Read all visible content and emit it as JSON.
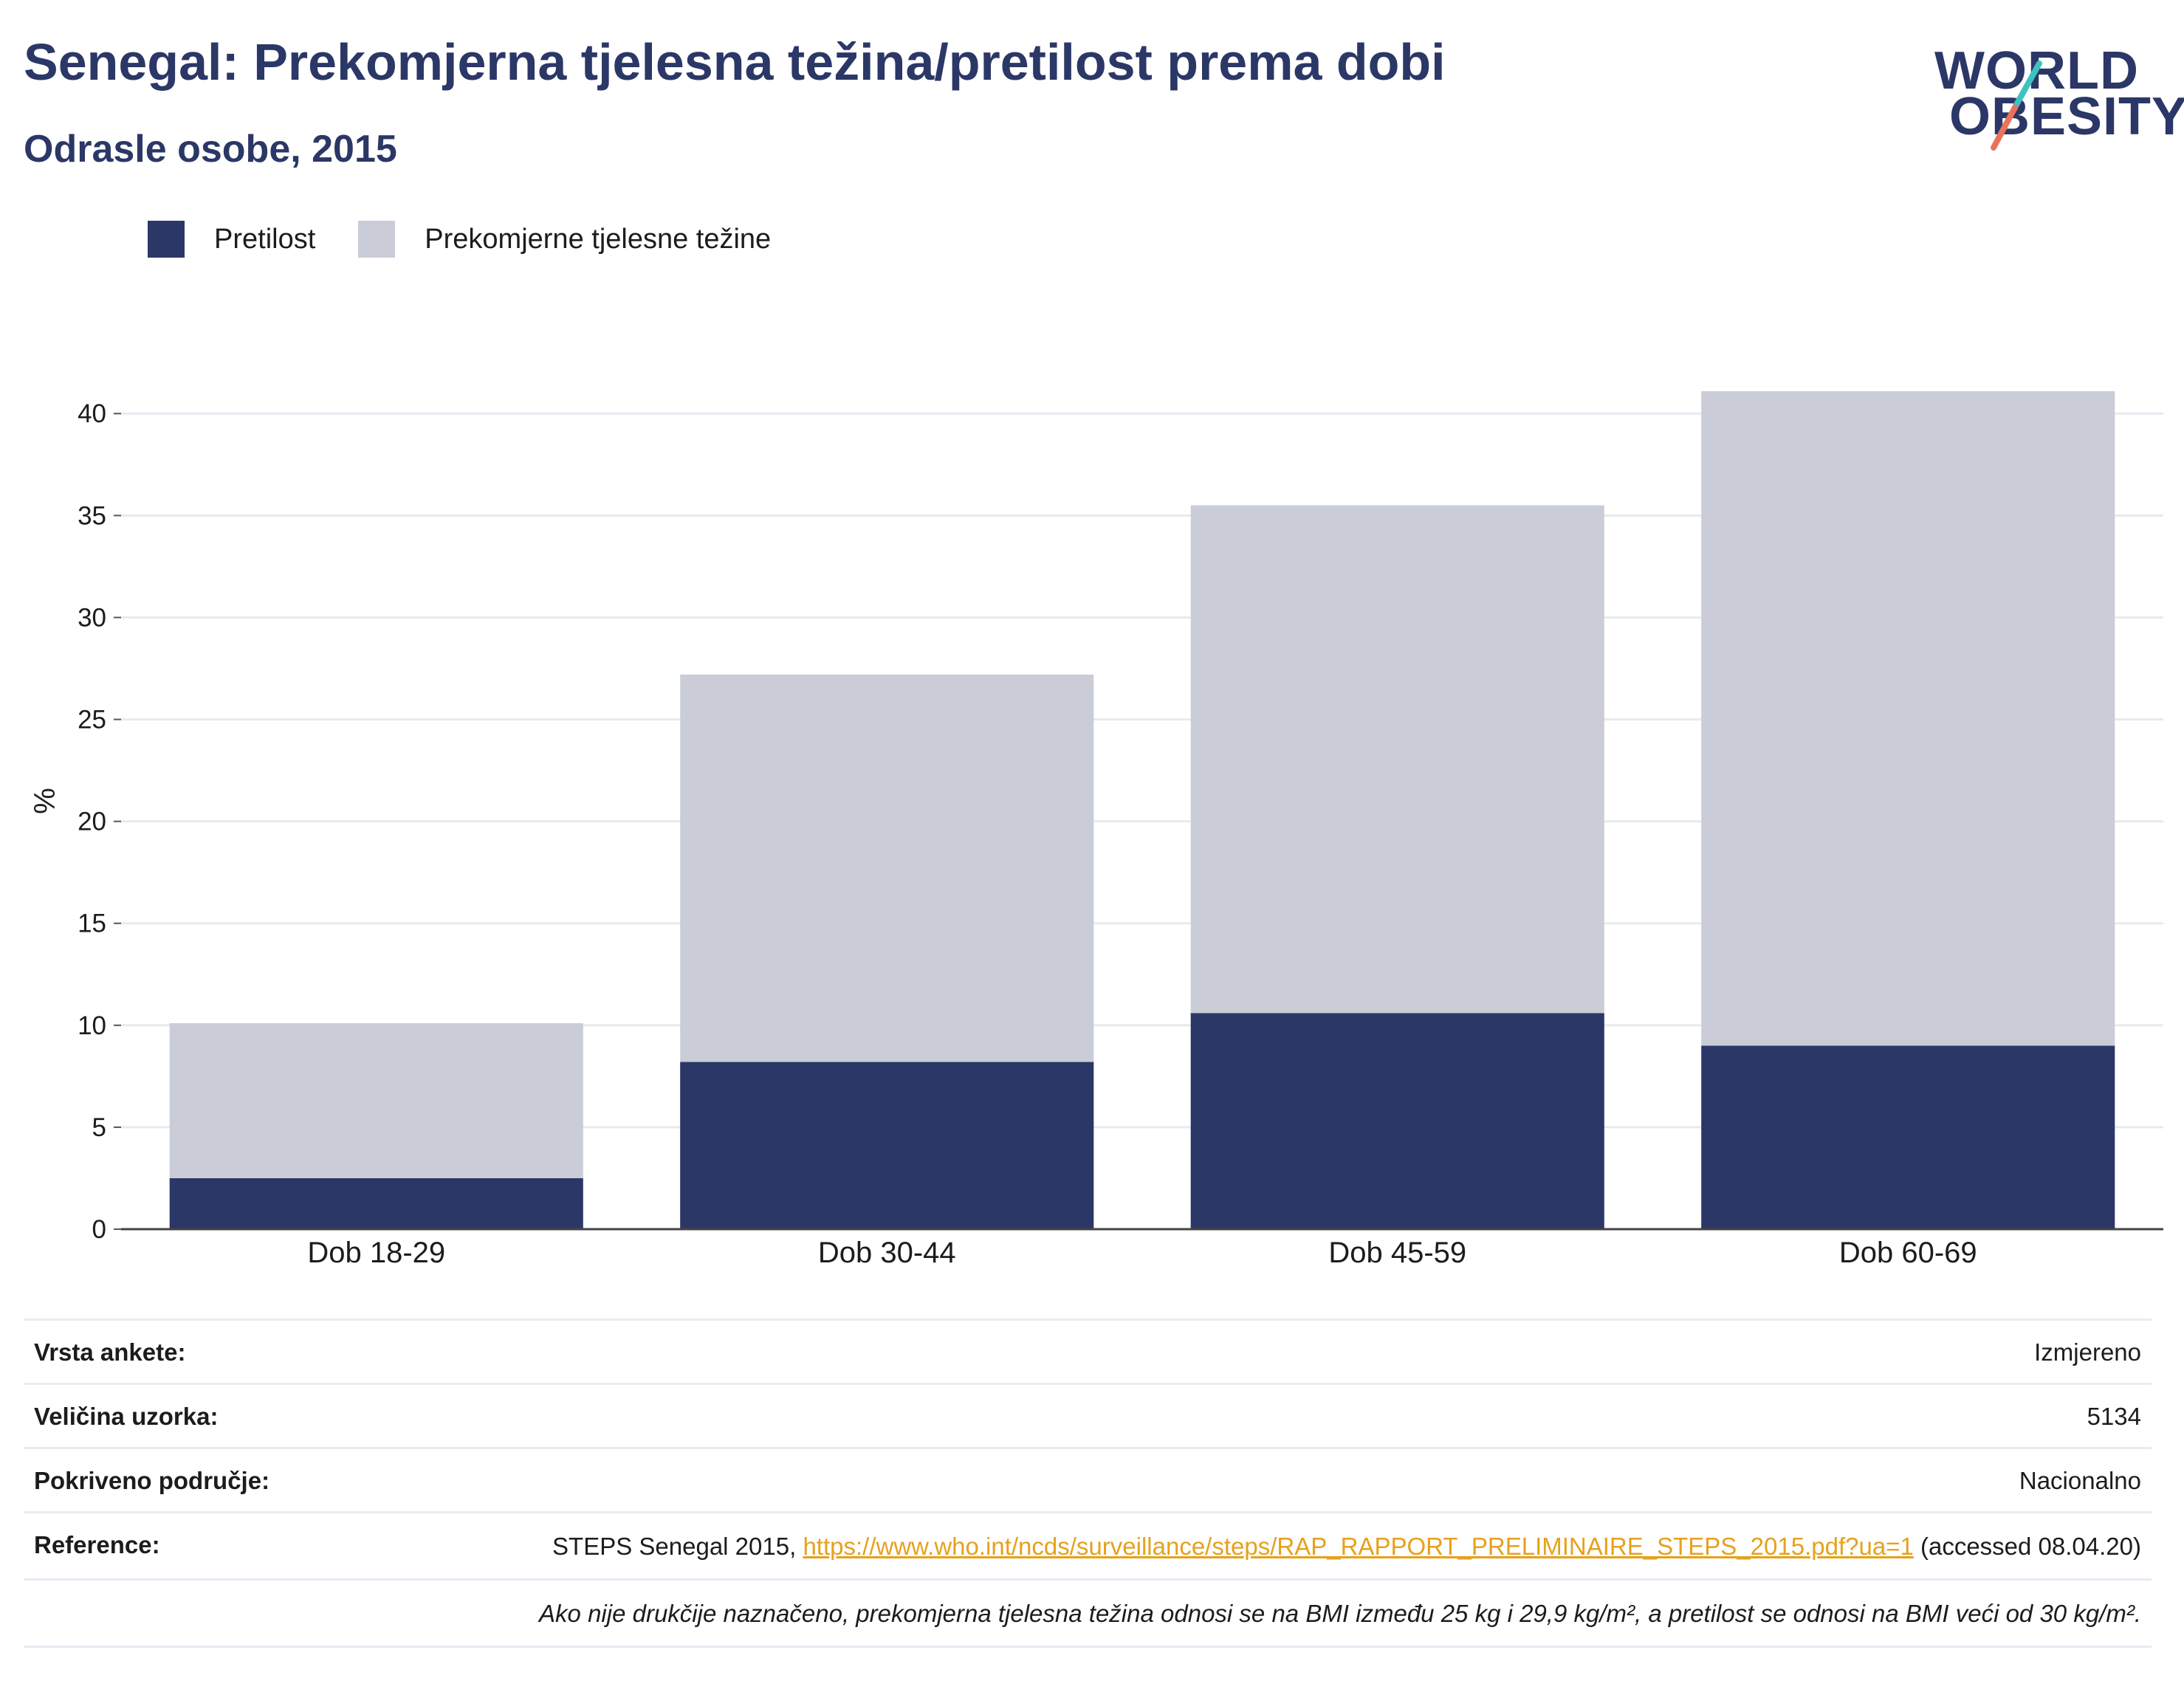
{
  "title": "Senegal: Prekomjerna tjelesna težina/pretilost prema dobi",
  "subtitle": "Odrasle osobe, 2015",
  "logo": {
    "line1": "WORLD",
    "line2": "OBESITY"
  },
  "colors": {
    "obesity": "#2b3766",
    "overweight": "#cacdd8",
    "accent_teal": "#3ec1c1",
    "accent_coral": "#e8735a",
    "link": "#e6a11d"
  },
  "chart_data": {
    "type": "bar",
    "stacked": true,
    "categories": [
      "Dob 18-29",
      "Dob 30-44",
      "Dob 45-59",
      "Dob 60-69"
    ],
    "series": [
      {
        "name": "Pretilost",
        "values": [
          2.5,
          8.2,
          10.6,
          9.0
        ]
      },
      {
        "name": "Prekomjerne tjelesne težine",
        "values": [
          7.6,
          19.0,
          24.9,
          32.1
        ]
      }
    ],
    "ylabel": "%",
    "yticks": [
      0,
      5,
      10,
      15,
      20,
      25,
      30,
      35,
      40
    ],
    "ylim": [
      0,
      42
    ],
    "grid": true,
    "legend_position": "top-left"
  },
  "info": {
    "survey_type": {
      "label": "Vrsta ankete:",
      "value": "Izmjereno"
    },
    "sample_size": {
      "label": "Veličina uzorka:",
      "value": "5134"
    },
    "coverage": {
      "label": "Pokriveno područje:",
      "value": "Nacionalno"
    },
    "reference": {
      "label": "Reference:",
      "prefix": "STEPS Senegal 2015, ",
      "link": "https://www.who.int/ncds/surveillance/steps/RAP_RAPPORT_PRELIMINAIRE_STEPS_2015.pdf?ua=1",
      "suffix": " (accessed 08.04.20)"
    },
    "footnote": "Ako nije drukčije naznačeno, prekomjerna tjelesna težina odnosi se na BMI između 25 kg i 29,9 kg/m², a pretilost se odnosi na BMI veći od 30 kg/m²."
  }
}
